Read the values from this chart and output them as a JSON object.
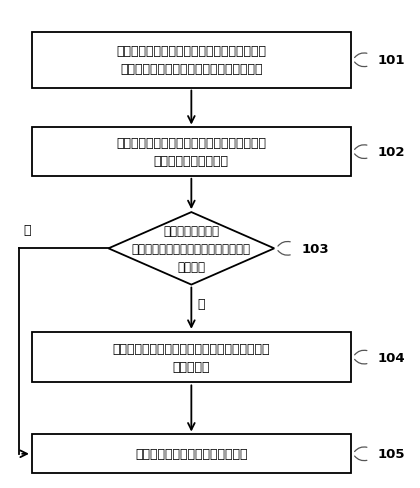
{
  "background_color": "#ffffff",
  "box_fill": "#ffffff",
  "box_edge": "#000000",
  "arrow_color": "#000000",
  "text_color": "#000000",
  "label_color": "#000000",
  "box1_text": "前端检测装置对发射机的工作频率进行检测；\n后端控制装置对接收机的工作频率进行检测",
  "box2_text": "前端检测装置向后端控制装置发送查询命令，\n获取接收机的工作频率",
  "diamond_text": "前端检测装置判断\n发射机的工作频率与接收机的工作频率\n是否相同",
  "box4_text": "后端控制装置将接收机的工作频率调整为发射机\n的工作频率",
  "box5_text": "发射机与接收机建立无线通信连接",
  "yes_text": "是",
  "no_text": "否",
  "labels": [
    "101",
    "102",
    "103",
    "104",
    "105"
  ],
  "figsize": [
    4.2,
    4.89
  ],
  "dpi": 100,
  "lw": 1.3,
  "fontsize": 9.0,
  "label_fontsize": 9.5
}
